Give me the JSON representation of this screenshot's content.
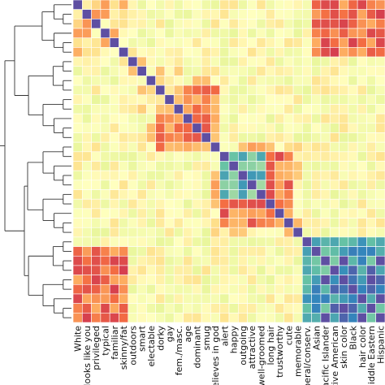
{
  "chart_data": {
    "type": "heatmap",
    "title": "",
    "xlabel": "",
    "ylabel": "",
    "row_dendrogram": true,
    "grid": true,
    "colormap": "Spectral_r",
    "colors": {
      "high": "#9e0142",
      "mid": "#ffffbf",
      "low": "#5e4fa2",
      "diagonal": "#5e4fa2",
      "gridline": "#ffffff"
    },
    "value_range": [
      0,
      1
    ],
    "labels": [
      "White",
      "looks like you",
      "privileged",
      "typical",
      "familiar",
      "skinny/fat",
      "outdoors",
      "smart",
      "electable",
      "dorky",
      "gay",
      "fem./masc.",
      "age",
      "dominant",
      "smug",
      "believes in god",
      "alert",
      "happy",
      "outgoing",
      "attractive",
      "well-groomed",
      "long hair",
      "trustworthy",
      "cute",
      "memorable",
      "liberal/conserv.",
      "Asian",
      "Pacific Islander",
      "Native American",
      "skin color",
      "Black",
      "hair color",
      "Middle Eastern",
      "Hispanic"
    ],
    "clusters": [
      {
        "start": 0,
        "end": 6,
        "strength": 0.62
      },
      {
        "start": 6,
        "end": 15,
        "strength": 0.55
      },
      {
        "start": 15,
        "end": 25,
        "strength": 0.6
      },
      {
        "start": 25,
        "end": 34,
        "strength": 0.1
      }
    ],
    "highlights": [
      {
        "rows": [
          0,
          1,
          2,
          3,
          4,
          5
        ],
        "cols": [
          26,
          27,
          28,
          29,
          30,
          31,
          32,
          33
        ],
        "value": 0.82
      },
      {
        "rows": [
          26,
          27,
          28,
          29,
          30,
          31,
          32,
          33
        ],
        "cols": [
          0,
          1,
          2,
          3,
          4,
          5
        ],
        "value": 0.8
      },
      {
        "rows": [
          16,
          17,
          18,
          19,
          20,
          21,
          22,
          23
        ],
        "cols": [
          19,
          20,
          21,
          22,
          23
        ],
        "value": 0.78
      },
      {
        "rows": [
          9,
          10,
          11,
          12,
          13,
          14
        ],
        "cols": [
          11,
          12,
          13,
          14,
          15
        ],
        "value": 0.75
      },
      {
        "rows": [
          16,
          17,
          18,
          19,
          20
        ],
        "cols": [
          16,
          17,
          18,
          19,
          20
        ],
        "value": 0.2
      }
    ]
  }
}
